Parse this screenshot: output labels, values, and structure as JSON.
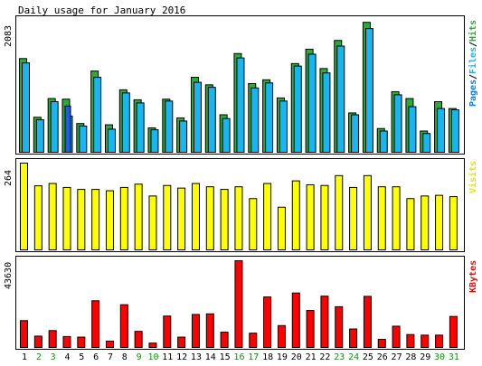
{
  "chart_data": [
    {
      "type": "bar",
      "title": "Daily usage for January 2016",
      "ylabel": "2083",
      "ylim": [
        0,
        2083
      ],
      "legend": [
        "Pages",
        "Files",
        "Hits"
      ],
      "legend_position": "right",
      "categories": [
        "1",
        "2",
        "3",
        "4",
        "5",
        "6",
        "7",
        "8",
        "9",
        "10",
        "11",
        "12",
        "13",
        "14",
        "15",
        "16",
        "17",
        "18",
        "19",
        "20",
        "21",
        "22",
        "23",
        "24",
        "25",
        "26",
        "27",
        "28",
        "29",
        "30",
        "31"
      ],
      "series": [
        {
          "name": "Hits",
          "values": [
            1500,
            560,
            860,
            850,
            460,
            1300,
            440,
            1000,
            840,
            390,
            850,
            550,
            1200,
            1080,
            600,
            1580,
            1100,
            1160,
            870,
            1420,
            1650,
            1340,
            1790,
            630,
            2080,
            380,
            970,
            860,
            340,
            810,
            700
          ]
        },
        {
          "name": "Files",
          "values": [
            1430,
            520,
            810,
            580,
            420,
            1200,
            370,
            950,
            790,
            360,
            820,
            500,
            1120,
            1040,
            540,
            1510,
            1030,
            1110,
            820,
            1380,
            1570,
            1270,
            1700,
            600,
            1980,
            340,
            920,
            730,
            300,
            700,
            680
          ]
        },
        {
          "name": "Pages",
          "values": [
            0,
            0,
            0,
            740,
            0,
            0,
            0,
            0,
            0,
            0,
            0,
            0,
            0,
            0,
            0,
            0,
            0,
            0,
            0,
            0,
            0,
            0,
            0,
            0,
            0,
            0,
            0,
            0,
            0,
            0,
            0
          ]
        }
      ]
    },
    {
      "type": "bar",
      "ylabel": "264",
      "ylim": [
        0,
        264
      ],
      "legend": [
        "Visits"
      ],
      "categories": [
        "1",
        "2",
        "3",
        "4",
        "5",
        "6",
        "7",
        "8",
        "9",
        "10",
        "11",
        "12",
        "13",
        "14",
        "15",
        "16",
        "17",
        "18",
        "19",
        "20",
        "21",
        "22",
        "23",
        "24",
        "25",
        "26",
        "27",
        "28",
        "29",
        "30",
        "31"
      ],
      "series": [
        {
          "name": "Visits",
          "values": [
            264,
            195,
            202,
            190,
            184,
            184,
            180,
            190,
            200,
            164,
            196,
            188,
            202,
            192,
            184,
            192,
            156,
            202,
            130,
            210,
            198,
            196,
            226,
            190,
            226,
            192,
            192,
            156,
            164,
            166,
            162
          ]
        }
      ]
    },
    {
      "type": "bar",
      "ylabel": "43630",
      "ylim": [
        0,
        43630
      ],
      "legend": [
        "KBytes"
      ],
      "categories": [
        "1",
        "2",
        "3",
        "4",
        "5",
        "6",
        "7",
        "8",
        "9",
        "10",
        "11",
        "12",
        "13",
        "14",
        "15",
        "16",
        "17",
        "18",
        "19",
        "20",
        "21",
        "22",
        "23",
        "24",
        "25",
        "26",
        "27",
        "28",
        "29",
        "30",
        "31"
      ],
      "series": [
        {
          "name": "KBytes",
          "values": [
            13500,
            5700,
            8500,
            5500,
            5200,
            23500,
            3200,
            21500,
            8100,
            2200,
            15800,
            5200,
            16600,
            16900,
            7700,
            43630,
            7200,
            25400,
            11000,
            27400,
            18600,
            25800,
            20500,
            9300,
            25700,
            4100,
            10700,
            6500,
            6200,
            6200,
            15600
          ]
        }
      ]
    }
  ],
  "x_axis": {
    "labels": [
      "1",
      "2",
      "3",
      "4",
      "5",
      "6",
      "7",
      "8",
      "9",
      "10",
      "11",
      "12",
      "13",
      "14",
      "15",
      "16",
      "17",
      "18",
      "19",
      "20",
      "21",
      "22",
      "23",
      "24",
      "25",
      "26",
      "27",
      "28",
      "29",
      "30",
      "31"
    ],
    "weekend_days": [
      2,
      3,
      9,
      10,
      16,
      17,
      23,
      24,
      30,
      31
    ]
  },
  "colors": {
    "hits": "#00a000",
    "hits_face": "#2eaa3a",
    "files": "#0080ff",
    "files_face": "#17b6f0",
    "pages": "#1a5fe0",
    "visits": "#ffff00",
    "kbytes": "#ff0000",
    "weekday_label": "#000000",
    "weekend_label": "#00a000"
  }
}
